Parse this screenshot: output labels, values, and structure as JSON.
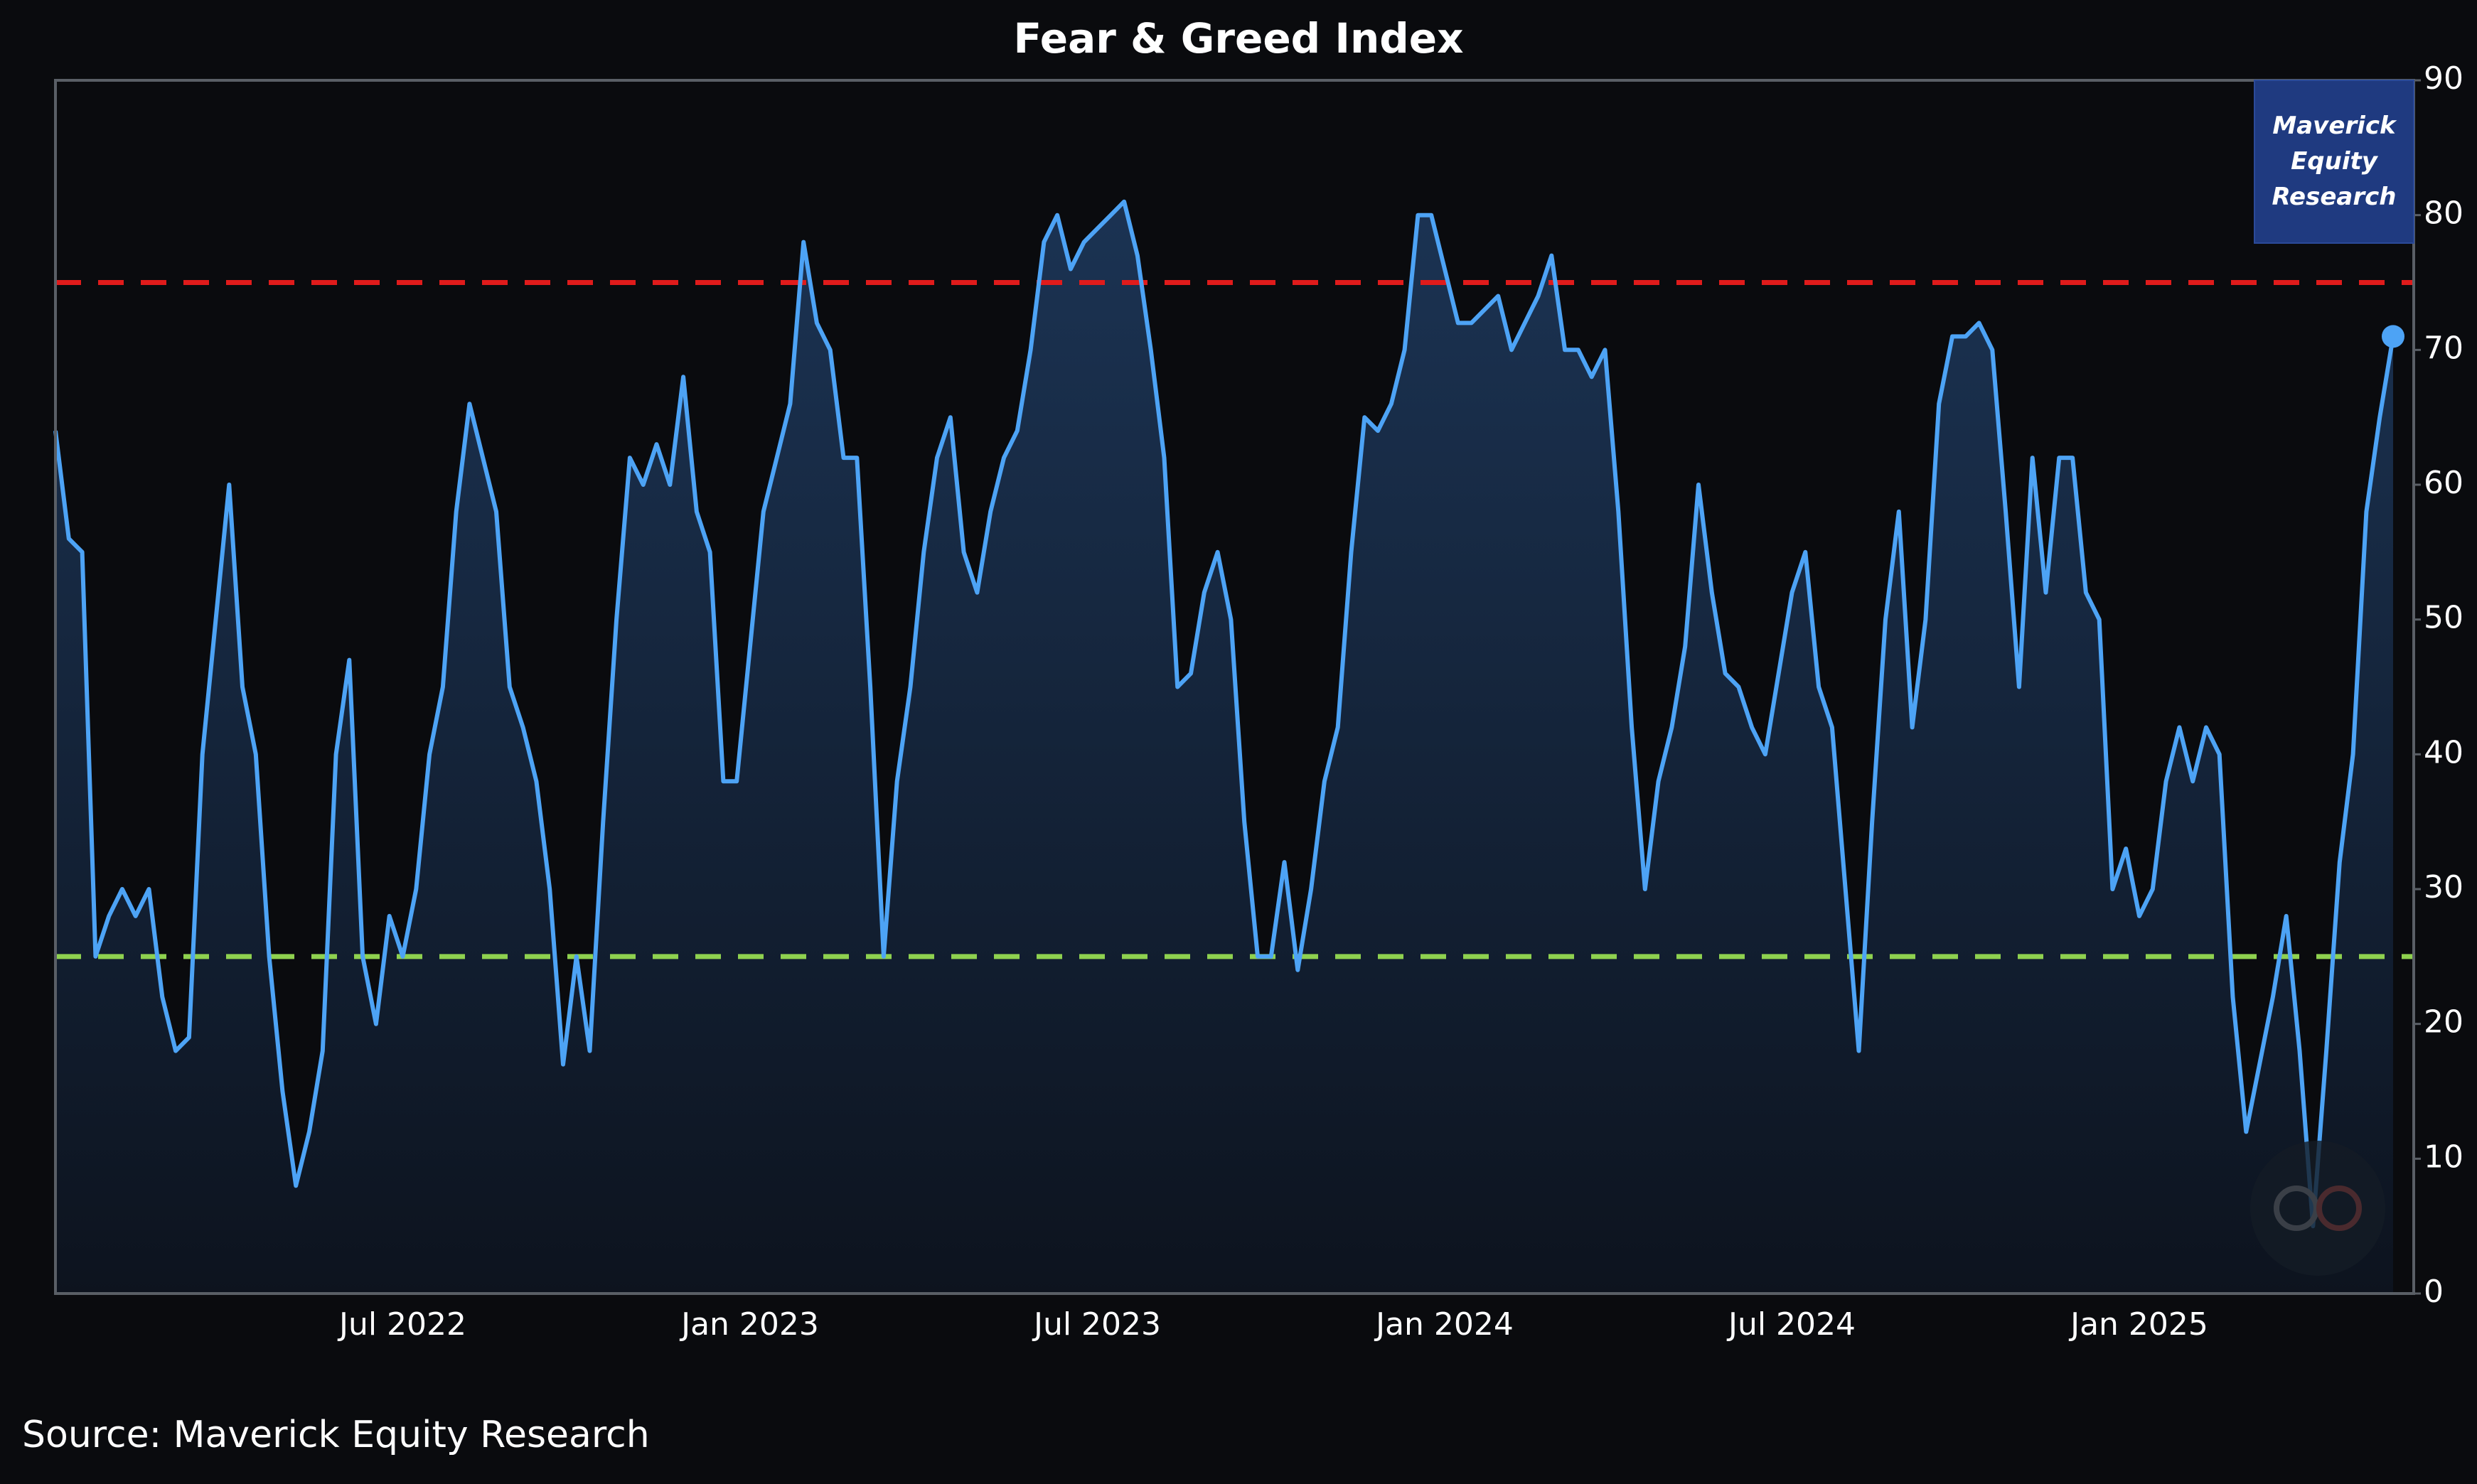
{
  "chart_data": {
    "type": "line",
    "title": "Fear & Greed Index",
    "source": "Source: Maverick Equity Research",
    "brand": "Maverick Equity Research",
    "categories": [
      null,
      null,
      null,
      null,
      null,
      null,
      null,
      null,
      null,
      null,
      null,
      null,
      null,
      null,
      null,
      null,
      null,
      null,
      null,
      null,
      null,
      null,
      null,
      null,
      null,
      null,
      "Jul 2022",
      null,
      null,
      null,
      null,
      null,
      null,
      null,
      null,
      null,
      null,
      null,
      null,
      null,
      null,
      null,
      null,
      null,
      null,
      null,
      null,
      null,
      null,
      null,
      null,
      null,
      "Jan 2023",
      null,
      null,
      null,
      null,
      null,
      null,
      null,
      null,
      null,
      null,
      null,
      null,
      null,
      null,
      null,
      null,
      null,
      null,
      null,
      null,
      null,
      null,
      null,
      null,
      null,
      "Jul 2023",
      null,
      null,
      null,
      null,
      null,
      null,
      null,
      null,
      null,
      null,
      null,
      null,
      null,
      null,
      null,
      null,
      null,
      null,
      null,
      null,
      null,
      null,
      null,
      null,
      null,
      "Jan 2024",
      null,
      null,
      null,
      null,
      null,
      null,
      null,
      null,
      null,
      null,
      null,
      null,
      null,
      null,
      null,
      null,
      null,
      null,
      null,
      null,
      null,
      null,
      null,
      null,
      null,
      "Jul 2024",
      null,
      null,
      null,
      null,
      null,
      null,
      null,
      null,
      null,
      null,
      null,
      null,
      null,
      null,
      null,
      null,
      null,
      null,
      null,
      null,
      null,
      null,
      null,
      null,
      null,
      "Jan 2025",
      null,
      null,
      null,
      null,
      null,
      null,
      null,
      null,
      null,
      null,
      null,
      null,
      null,
      null,
      null,
      null,
      null,
      null,
      null
    ],
    "series": [
      {
        "color": "#4da3f5",
        "values": [
          64,
          56,
          55,
          25,
          28,
          30,
          28,
          30,
          22,
          18,
          19,
          40,
          50,
          60,
          45,
          40,
          25,
          15,
          8,
          12,
          18,
          40,
          47,
          25,
          20,
          28,
          25,
          30,
          40,
          45,
          58,
          66,
          62,
          58,
          45,
          42,
          38,
          30,
          17,
          25,
          18,
          35,
          50,
          62,
          60,
          63,
          60,
          68,
          58,
          55,
          38,
          38,
          48,
          58,
          62,
          66,
          78,
          72,
          70,
          62,
          62,
          45,
          25,
          38,
          45,
          55,
          62,
          65,
          55,
          52,
          58,
          62,
          64,
          70,
          78,
          80,
          76,
          78,
          79,
          80,
          81,
          77,
          70,
          62,
          45,
          46,
          52,
          55,
          50,
          35,
          25,
          25,
          32,
          24,
          30,
          38,
          42,
          55,
          65,
          64,
          66,
          70,
          80,
          80,
          76,
          72,
          72,
          73,
          74,
          70,
          72,
          74,
          77,
          70,
          70,
          68,
          70,
          58,
          42,
          30,
          38,
          42,
          48,
          60,
          52,
          46,
          45,
          42,
          40,
          46,
          52,
          55,
          45,
          42,
          30,
          18,
          35,
          50,
          58,
          42,
          50,
          66,
          71,
          71,
          72,
          70,
          58,
          45,
          62,
          52,
          62,
          62,
          52,
          50,
          30,
          33,
          28,
          30,
          38,
          42,
          38,
          42,
          40,
          22,
          12,
          17,
          22,
          28,
          18,
          5,
          18,
          32,
          40,
          58,
          65,
          71
        ]
      }
    ],
    "hlines": [
      {
        "value": 75,
        "color": "#e01b1b"
      },
      {
        "value": 25,
        "color": "#8fd14f"
      }
    ],
    "ylim": [
      0,
      90
    ],
    "yticks": [
      0,
      10,
      20,
      30,
      40,
      50,
      60,
      70,
      80,
      90
    ],
    "y_axis_side": "right",
    "last_point_marker": true
  }
}
